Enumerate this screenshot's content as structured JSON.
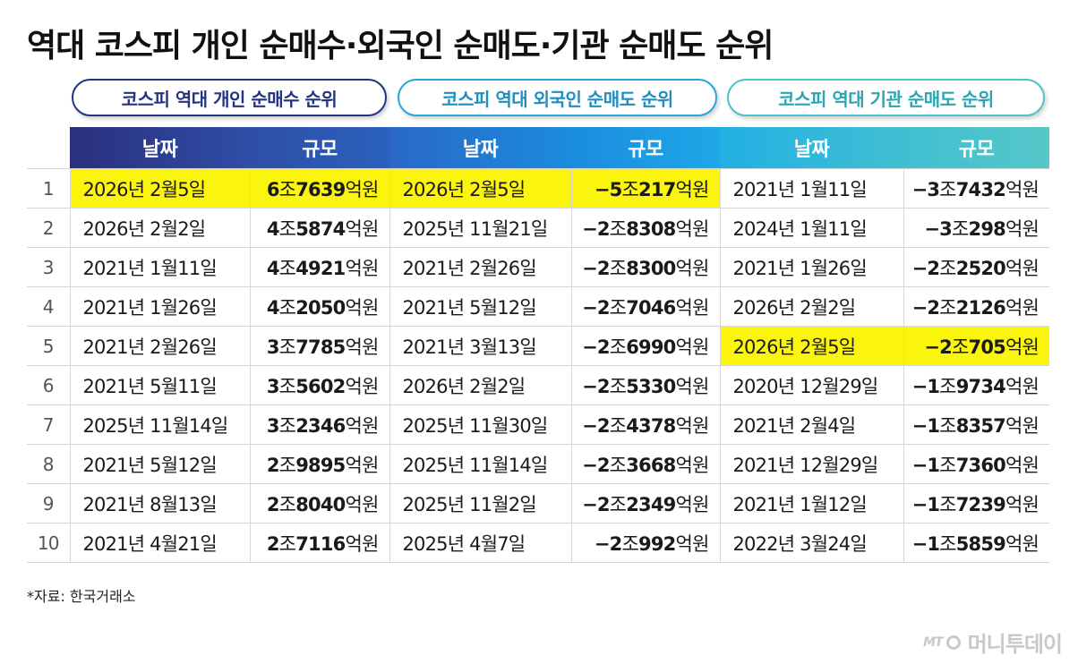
{
  "title": "역대 코스피 개인 순매수·외국인 순매도·기관 순매도 순위",
  "sections": {
    "individual": "코스피 역대 개인 순매수 순위",
    "foreign": "코스피 역대 외국인 순매도 순위",
    "institution": "코스피 역대 기관 순매도 순위"
  },
  "headers": {
    "date": "날짜",
    "size": "규모"
  },
  "colors": {
    "header_individual": "#2c3e96",
    "header_foreign": "#1b9fe0",
    "header_institution": "#48c0c4",
    "highlight": "#fbf40d"
  },
  "rows": [
    {
      "rank": "1",
      "ind": {
        "date": "2026년 2월5일",
        "bold": "6",
        "unit1": "조",
        "bold2": "7639",
        "unit2": "억원",
        "highlight": true
      },
      "for": {
        "date": "2026년 2월5일",
        "bold": "−5",
        "unit1": "조",
        "bold2": "217",
        "unit2": "억원",
        "highlight": true
      },
      "ins": {
        "date": "2021년 1월11일",
        "bold": "−3",
        "unit1": "조",
        "bold2": "7432",
        "unit2": "억원",
        "highlight": false
      }
    },
    {
      "rank": "2",
      "ind": {
        "date": "2026년 2월2일",
        "bold": "4",
        "unit1": "조",
        "bold2": "5874",
        "unit2": "억원",
        "highlight": false
      },
      "for": {
        "date": "2025년 11월21일",
        "bold": "−2",
        "unit1": "조",
        "bold2": "8308",
        "unit2": "억원",
        "highlight": false
      },
      "ins": {
        "date": "2024년 1월11일",
        "bold": "−3",
        "unit1": "조",
        "bold2": "298",
        "unit2": "억원",
        "highlight": false
      }
    },
    {
      "rank": "3",
      "ind": {
        "date": "2021년 1월11일",
        "bold": "4",
        "unit1": "조",
        "bold2": "4921",
        "unit2": "억원",
        "highlight": false
      },
      "for": {
        "date": "2021년 2월26일",
        "bold": "−2",
        "unit1": "조",
        "bold2": "8300",
        "unit2": "억원",
        "highlight": false
      },
      "ins": {
        "date": "2021년 1월26일",
        "bold": "−2",
        "unit1": "조",
        "bold2": "2520",
        "unit2": "억원",
        "highlight": false
      }
    },
    {
      "rank": "4",
      "ind": {
        "date": "2021년 1월26일",
        "bold": "4",
        "unit1": "조",
        "bold2": "2050",
        "unit2": "억원",
        "highlight": false
      },
      "for": {
        "date": "2021년 5월12일",
        "bold": "−2",
        "unit1": "조",
        "bold2": "7046",
        "unit2": "억원",
        "highlight": false
      },
      "ins": {
        "date": "2026년 2월2일",
        "bold": "−2",
        "unit1": "조",
        "bold2": "2126",
        "unit2": "억원",
        "highlight": false
      }
    },
    {
      "rank": "5",
      "ind": {
        "date": "2021년 2월26일",
        "bold": "3",
        "unit1": "조",
        "bold2": "7785",
        "unit2": "억원",
        "highlight": false
      },
      "for": {
        "date": "2021년 3월13일",
        "bold": "−2",
        "unit1": "조",
        "bold2": "6990",
        "unit2": "억원",
        "highlight": false
      },
      "ins": {
        "date": "2026년 2월5일",
        "bold": "−2",
        "unit1": "조",
        "bold2": "705",
        "unit2": "억원",
        "highlight": true
      }
    },
    {
      "rank": "6",
      "ind": {
        "date": "2021년 5월11일",
        "bold": "3",
        "unit1": "조",
        "bold2": "5602",
        "unit2": "억원",
        "highlight": false
      },
      "for": {
        "date": "2026년 2월2일",
        "bold": "−2",
        "unit1": "조",
        "bold2": "5330",
        "unit2": "억원",
        "highlight": false
      },
      "ins": {
        "date": "2020년 12월29일",
        "bold": "−1",
        "unit1": "조",
        "bold2": "9734",
        "unit2": "억원",
        "highlight": false
      }
    },
    {
      "rank": "7",
      "ind": {
        "date": "2025년 11월14일",
        "bold": "3",
        "unit1": "조",
        "bold2": "2346",
        "unit2": "억원",
        "highlight": false
      },
      "for": {
        "date": "2025년 11월30일",
        "bold": "−2",
        "unit1": "조",
        "bold2": "4378",
        "unit2": "억원",
        "highlight": false
      },
      "ins": {
        "date": "2021년 2월4일",
        "bold": "−1",
        "unit1": "조",
        "bold2": "8357",
        "unit2": "억원",
        "highlight": false
      }
    },
    {
      "rank": "8",
      "ind": {
        "date": "2021년 5월12일",
        "bold": "2",
        "unit1": "조",
        "bold2": "9895",
        "unit2": "억원",
        "highlight": false
      },
      "for": {
        "date": "2025년 11월14일",
        "bold": "−2",
        "unit1": "조",
        "bold2": "3668",
        "unit2": "억원",
        "highlight": false
      },
      "ins": {
        "date": "2021년 12월29일",
        "bold": "−1",
        "unit1": "조",
        "bold2": "7360",
        "unit2": "억원",
        "highlight": false
      }
    },
    {
      "rank": "9",
      "ind": {
        "date": "2021년 8월13일",
        "bold": "2",
        "unit1": "조",
        "bold2": "8040",
        "unit2": "억원",
        "highlight": false
      },
      "for": {
        "date": "2025년 11월2일",
        "bold": "−2",
        "unit1": "조",
        "bold2": "2349",
        "unit2": "억원",
        "highlight": false
      },
      "ins": {
        "date": "2021년 1월12일",
        "bold": "−1",
        "unit1": "조",
        "bold2": "7239",
        "unit2": "억원",
        "highlight": false
      }
    },
    {
      "rank": "10",
      "ind": {
        "date": "2021년 4월21일",
        "bold": "2",
        "unit1": "조",
        "bold2": "7116",
        "unit2": "억원",
        "highlight": false
      },
      "for": {
        "date": "2025년 4월7일",
        "bold": "−2",
        "unit1": "조",
        "bold2": "992",
        "unit2": "억원",
        "highlight": false
      },
      "ins": {
        "date": "2022년 3월24일",
        "bold": "−1",
        "unit1": "조",
        "bold2": "5859",
        "unit2": "억원",
        "highlight": false
      }
    }
  ],
  "source": "*자료: 한국거래소",
  "logo": {
    "prefix": "MT",
    "text": "머니투데이"
  }
}
